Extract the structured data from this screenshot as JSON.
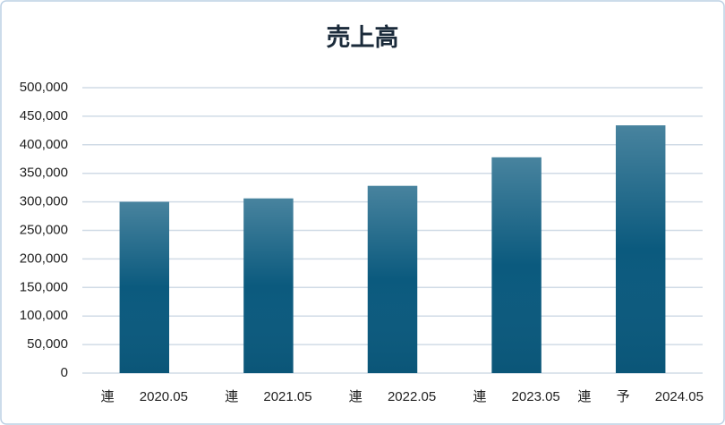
{
  "chart_data": {
    "type": "bar",
    "title": "売上高",
    "categories": [
      "連 2020.05",
      "連 2021.05",
      "連 2022.05",
      "連 2023.05",
      "連 予 2024.05"
    ],
    "values": [
      300000,
      306000,
      328000,
      378000,
      434000
    ],
    "color": "#0b5a7e",
    "ylim": [
      0,
      500000
    ],
    "yticks": [
      {
        "value": 0,
        "label": "0"
      },
      {
        "value": 50000,
        "label": "50,000"
      },
      {
        "value": 100000,
        "label": "100,000"
      },
      {
        "value": 150000,
        "label": "150,000"
      },
      {
        "value": 200000,
        "label": "200,000"
      },
      {
        "value": 250000,
        "label": "250,000"
      },
      {
        "value": 300000,
        "label": "300,000"
      },
      {
        "value": 350000,
        "label": "350,000"
      },
      {
        "value": 400000,
        "label": "400,000"
      },
      {
        "value": 450000,
        "label": "450,000"
      },
      {
        "value": 500000,
        "label": "500,000"
      }
    ],
    "grid": true
  }
}
